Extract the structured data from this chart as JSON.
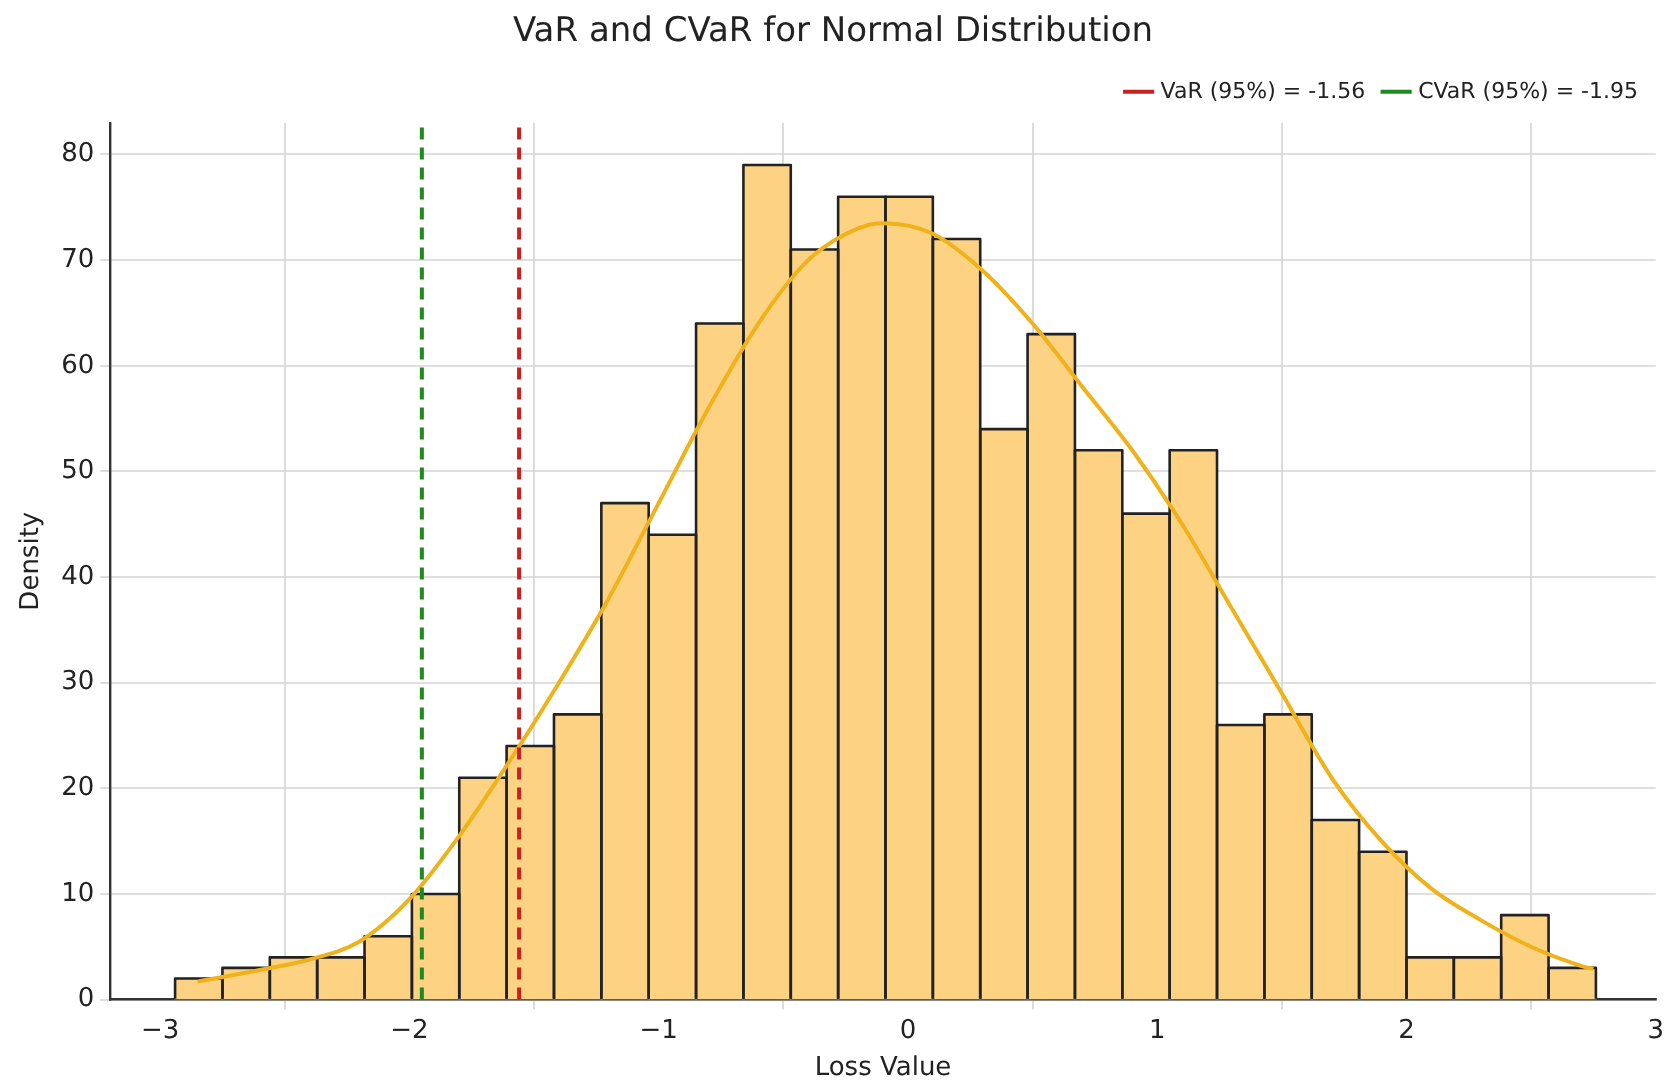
{
  "chart_data": {
    "type": "histogram",
    "title": "VaR and CVaR for Normal Distribution",
    "xlabel": "Loss Value",
    "ylabel": "Density",
    "bins": [
      -2.94,
      -2.75,
      -2.56,
      -2.37,
      -2.18,
      -1.99,
      -1.8,
      -1.61,
      -1.42,
      -1.23,
      -1.04,
      -0.85,
      -0.66,
      -0.47,
      -0.28,
      -0.09,
      0.1,
      0.29,
      0.48,
      0.67,
      0.86,
      1.05,
      1.24,
      1.43,
      1.62,
      1.81,
      2.0,
      2.19,
      2.38,
      2.57,
      2.76
    ],
    "values": [
      2,
      3,
      4,
      4,
      6,
      10,
      21,
      24,
      27,
      47,
      44,
      64,
      79,
      71,
      76,
      76,
      72,
      54,
      63,
      52,
      46,
      52,
      26,
      27,
      17,
      14,
      4,
      4,
      8,
      3
    ],
    "color": "#fdd383",
    "series": [
      {
        "type": "line",
        "color": "#f0b21a",
        "x": [
          -2.85,
          -2.6,
          -2.4,
          -2.2,
          -2.0,
          -1.8,
          -1.6,
          -1.4,
          -1.2,
          -1.0,
          -0.8,
          -0.6,
          -0.4,
          -0.2,
          -0.1,
          0.1,
          0.3,
          0.5,
          0.7,
          0.9,
          1.1,
          1.3,
          1.5,
          1.7,
          1.9,
          2.1,
          2.3,
          2.5,
          2.7,
          2.75
        ],
        "values": [
          1.7,
          2.8,
          3.8,
          5.5,
          9.5,
          15.5,
          22.5,
          30,
          38,
          47,
          56,
          64,
          70,
          73,
          73.5,
          72.5,
          69,
          64,
          58,
          52,
          45,
          37,
          29,
          21,
          15,
          10.5,
          7.5,
          5,
          3.2,
          2.9
        ]
      }
    ],
    "ref_lines": [
      {
        "axis": "x",
        "value": -1.56,
        "label": "VaR (95%) = -1.56",
        "color": "#cc2020",
        "line_style": "dashed"
      },
      {
        "axis": "x",
        "value": -1.95,
        "label": "CVaR (95%) = -1.95",
        "color": "#1f8a1f",
        "line_style": "dashed"
      }
    ],
    "xlim": [
      -3.2,
      3.0
    ],
    "xticks": [
      -3,
      -2,
      -1,
      0,
      1,
      2,
      3
    ],
    "ylim": [
      0,
      83
    ],
    "yticks": [
      0,
      10,
      20,
      30,
      40,
      50,
      60,
      70,
      80
    ],
    "grid": true,
    "legend": "top right"
  }
}
